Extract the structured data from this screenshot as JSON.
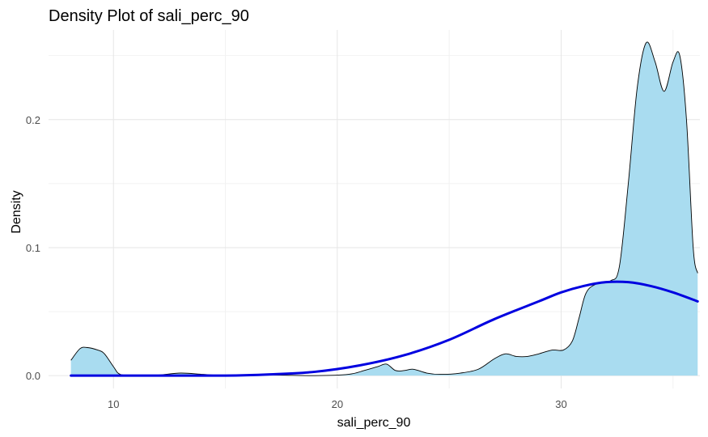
{
  "chart_data": {
    "type": "area",
    "title": "Density Plot of sali_perc_90",
    "xlabel": "sali_perc_90",
    "ylabel": "Density",
    "xlim": [
      7.1,
      36.2
    ],
    "ylim": [
      -0.01,
      0.27
    ],
    "x_ticks": [
      10,
      20,
      30
    ],
    "x_tick_labels": [
      "10",
      "20",
      "30"
    ],
    "x_minor_ticks": [
      15,
      25,
      35
    ],
    "y_ticks": [
      0.0,
      0.1,
      0.2
    ],
    "y_tick_labels": [
      "0.0",
      "0.1",
      "0.2"
    ],
    "y_minor_ticks": [
      0.05,
      0.15,
      0.25
    ],
    "grid": true,
    "legend": "none",
    "series": [
      {
        "kind": "density-area",
        "fill": "#a9dcf0",
        "stroke": "#000000",
        "points": [
          [
            8.1,
            0.012
          ],
          [
            8.5,
            0.021
          ],
          [
            8.8,
            0.022
          ],
          [
            9.3,
            0.02
          ],
          [
            9.6,
            0.017
          ],
          [
            10.0,
            0.007
          ],
          [
            10.3,
            0.001
          ],
          [
            11.0,
            0.0
          ],
          [
            12.0,
            0.0005
          ],
          [
            13.0,
            0.002
          ],
          [
            14.0,
            0.001
          ],
          [
            15.0,
            0.0
          ],
          [
            17.0,
            0.0005
          ],
          [
            19.0,
            0.0
          ],
          [
            20.5,
            0.001
          ],
          [
            21.2,
            0.004
          ],
          [
            21.8,
            0.007
          ],
          [
            22.2,
            0.009
          ],
          [
            22.6,
            0.004
          ],
          [
            23.0,
            0.004
          ],
          [
            23.4,
            0.005
          ],
          [
            24.0,
            0.002
          ],
          [
            24.6,
            0.001
          ],
          [
            25.5,
            0.002
          ],
          [
            26.3,
            0.005
          ],
          [
            27.0,
            0.013
          ],
          [
            27.5,
            0.017
          ],
          [
            28.0,
            0.015
          ],
          [
            28.5,
            0.015
          ],
          [
            29.0,
            0.017
          ],
          [
            29.6,
            0.02
          ],
          [
            30.1,
            0.02
          ],
          [
            30.5,
            0.027
          ],
          [
            30.8,
            0.045
          ],
          [
            31.1,
            0.064
          ],
          [
            31.5,
            0.071
          ],
          [
            32.2,
            0.074
          ],
          [
            32.6,
            0.085
          ],
          [
            33.0,
            0.15
          ],
          [
            33.4,
            0.225
          ],
          [
            33.8,
            0.26
          ],
          [
            34.2,
            0.245
          ],
          [
            34.6,
            0.222
          ],
          [
            35.0,
            0.245
          ],
          [
            35.3,
            0.25
          ],
          [
            35.6,
            0.2
          ],
          [
            35.9,
            0.1
          ],
          [
            36.1,
            0.08
          ]
        ]
      },
      {
        "kind": "normal-curve",
        "stroke": "#0000e0",
        "points": [
          [
            8.1,
            0.0
          ],
          [
            12.0,
            0.0
          ],
          [
            15.0,
            0.0
          ],
          [
            17.0,
            0.001
          ],
          [
            19.0,
            0.003
          ],
          [
            21.0,
            0.008
          ],
          [
            23.0,
            0.016
          ],
          [
            25.0,
            0.028
          ],
          [
            27.0,
            0.044
          ],
          [
            29.0,
            0.058
          ],
          [
            30.0,
            0.065
          ],
          [
            31.0,
            0.07
          ],
          [
            32.0,
            0.073
          ],
          [
            33.0,
            0.073
          ],
          [
            34.0,
            0.07
          ],
          [
            35.0,
            0.065
          ],
          [
            36.1,
            0.058
          ]
        ]
      }
    ]
  }
}
